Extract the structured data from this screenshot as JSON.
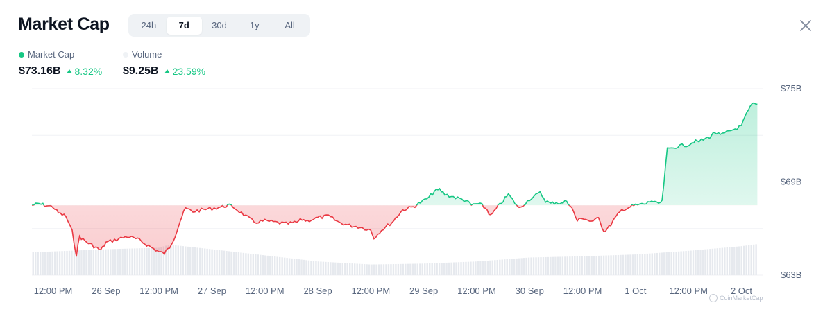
{
  "header": {
    "title": "Market Cap",
    "tabs": [
      {
        "label": "24h",
        "active": false
      },
      {
        "label": "7d",
        "active": true
      },
      {
        "label": "30d",
        "active": false
      },
      {
        "label": "1y",
        "active": false
      },
      {
        "label": "All",
        "active": false
      }
    ],
    "close_icon": "close-icon"
  },
  "legend": {
    "market_cap": {
      "label": "Market Cap",
      "color": "#16c784"
    },
    "volume": {
      "label": "Volume",
      "color": "#eff2f5"
    }
  },
  "stats": {
    "market_cap": {
      "value": "$73.16B",
      "change": "8.32%",
      "direction": "up"
    },
    "volume": {
      "value": "$9.25B",
      "change": "23.59%",
      "direction": "up"
    }
  },
  "colors": {
    "up": "#16c784",
    "down": "#ea3943",
    "up_fill": "#16c784",
    "down_fill": "#ea3943",
    "volume": "#e6e9ee",
    "grid": "#f0f2f5"
  },
  "watermark": "CoinMarketCap",
  "chart_data": {
    "type": "area",
    "title": "Market Cap",
    "baseline": 67.5,
    "ylim": [
      63,
      75
    ],
    "y_ticks": [
      "$75B",
      "$69B",
      "$63B"
    ],
    "y_tick_values": [
      75,
      69,
      63
    ],
    "x_ticks": [
      "12:00 PM",
      "26 Sep",
      "12:00 PM",
      "27 Sep",
      "12:00 PM",
      "28 Sep",
      "12:00 PM",
      "29 Sep",
      "12:00 PM",
      "30 Sep",
      "12:00 PM",
      "1 Oct",
      "12:00 PM",
      "2 Oct"
    ],
    "x_tick_values": [
      0.5,
      1,
      1.5,
      2,
      2.5,
      3,
      3.5,
      4,
      4.5,
      5,
      5.5,
      6,
      6.5,
      7
    ],
    "x_range": [
      0.3,
      7.2
    ],
    "grid": true,
    "legend_position": "top-left",
    "series": [
      {
        "name": "Market Cap",
        "x": [
          0.3,
          0.37,
          0.42,
          0.5,
          0.55,
          0.62,
          0.68,
          0.72,
          0.75,
          0.8,
          0.85,
          0.9,
          0.95,
          1.0,
          1.1,
          1.2,
          1.3,
          1.35,
          1.4,
          1.45,
          1.5,
          1.55,
          1.6,
          1.65,
          1.7,
          1.75,
          1.82,
          1.9,
          2.0,
          2.1,
          2.15,
          2.2,
          2.3,
          2.4,
          2.5,
          2.6,
          2.7,
          2.8,
          2.85,
          2.9,
          3.0,
          3.1,
          3.2,
          3.3,
          3.4,
          3.5,
          3.53,
          3.6,
          3.7,
          3.75,
          3.8,
          3.9,
          3.95,
          4.05,
          4.1,
          4.15,
          4.2,
          4.3,
          4.4,
          4.45,
          4.5,
          4.55,
          4.6,
          4.63,
          4.7,
          4.75,
          4.8,
          4.9,
          5.0,
          5.1,
          5.15,
          5.2,
          5.25,
          5.3,
          5.35,
          5.4,
          5.45,
          5.5,
          5.53,
          5.6,
          5.65,
          5.7,
          5.75,
          5.8,
          5.87,
          5.95,
          6.0,
          6.1,
          6.15,
          6.2,
          6.25,
          6.3,
          6.4,
          6.5,
          6.55,
          6.6,
          6.7,
          6.75,
          6.8,
          6.9,
          7.0,
          7.05,
          7.1,
          7.15
        ],
        "y": [
          67.5,
          67.6,
          67.5,
          67.4,
          67.0,
          66.8,
          65.8,
          64.3,
          65.5,
          65.2,
          65.0,
          64.8,
          64.6,
          65.1,
          65.3,
          65.5,
          65.3,
          65.1,
          64.9,
          64.7,
          64.5,
          64.4,
          64.8,
          65.5,
          66.5,
          67.3,
          67.1,
          67.2,
          67.3,
          67.4,
          67.5,
          67.4,
          66.9,
          66.4,
          66.5,
          66.4,
          66.3,
          66.4,
          66.6,
          66.5,
          66.7,
          66.8,
          66.4,
          66.2,
          66.1,
          65.9,
          65.4,
          65.9,
          66.4,
          66.8,
          67.2,
          67.4,
          67.6,
          68.0,
          68.4,
          68.5,
          68.2,
          68.0,
          67.8,
          67.5,
          67.6,
          67.5,
          67.2,
          66.8,
          67.4,
          67.8,
          68.2,
          67.3,
          67.9,
          68.3,
          67.8,
          67.6,
          67.7,
          67.6,
          67.8,
          67.3,
          66.5,
          66.7,
          66.6,
          66.4,
          66.8,
          65.8,
          66.1,
          66.6,
          67.2,
          67.4,
          67.5,
          67.6,
          67.8,
          67.6,
          67.7,
          71.1,
          71.3,
          71.4,
          71.6,
          71.6,
          71.9,
          72.2,
          72.0,
          72.3,
          72.6,
          73.4,
          74.0,
          74.0
        ]
      },
      {
        "name": "Volume",
        "x": [
          0.3,
          1.0,
          1.5,
          1.6,
          2.0,
          2.5,
          3.0,
          3.5,
          4.0,
          4.5,
          5.0,
          5.5,
          6.0,
          6.5,
          7.0,
          7.15
        ],
        "y": [
          7.5,
          8.5,
          9.0,
          10.0,
          8.5,
          6.5,
          4.5,
          3.5,
          3.8,
          4.5,
          5.8,
          6.2,
          6.8,
          8.0,
          9.5,
          10.2
        ]
      }
    ]
  }
}
